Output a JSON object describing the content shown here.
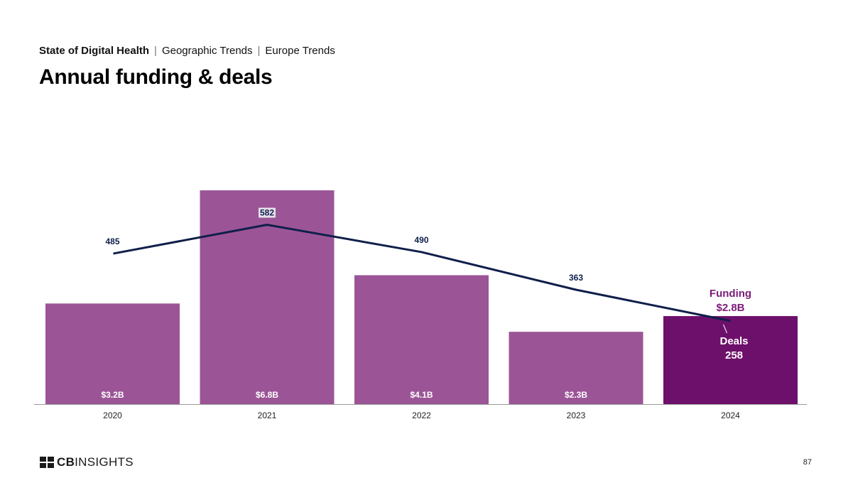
{
  "header": {
    "breadcrumb": [
      "State of Digital Health",
      "Geographic Trends",
      "Europe Trends"
    ],
    "title": "Annual funding & deals"
  },
  "footer": {
    "logo_text_bold": "CB",
    "logo_text_light": "INSIGHTS",
    "page_number": "87"
  },
  "colors": {
    "bar": "#9b5596",
    "bar_highlight": "#6d106b",
    "line": "#0f1f4b",
    "funding_label": "#7a1c78",
    "axis": "#999999"
  },
  "chart_data": {
    "type": "bar",
    "categories": [
      "2020",
      "2021",
      "2022",
      "2023",
      "2024"
    ],
    "series": [
      {
        "name": "Funding",
        "unit": "$B",
        "values": [
          3.2,
          6.8,
          4.1,
          2.3,
          2.8
        ],
        "labels": [
          "$3.2B",
          "$6.8B",
          "$4.1B",
          "$2.3B",
          "$2.8B"
        ]
      },
      {
        "name": "Deals",
        "type": "line",
        "values": [
          485,
          582,
          490,
          363,
          258
        ],
        "labels": [
          "485",
          "582",
          "490",
          "363",
          "258"
        ]
      }
    ],
    "highlight_index": 4,
    "callouts": {
      "funding_label": "Funding",
      "funding_value": "$2.8B",
      "deals_label": "Deals",
      "deals_value": "258"
    },
    "funding_ylim": [
      0,
      6.8
    ],
    "deals_ylim": [
      0,
      700
    ],
    "grid": false,
    "title": "",
    "xlabel": "",
    "ylabel": ""
  }
}
